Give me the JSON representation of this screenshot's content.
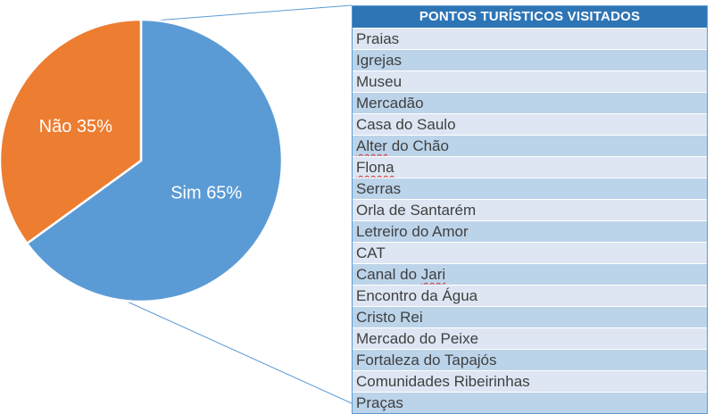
{
  "chart_data": {
    "type": "pie",
    "slices": [
      {
        "label": "Sim 65%",
        "category": "Sim",
        "value": 65,
        "color": "#5b9bd5"
      },
      {
        "label": "Não 35%",
        "category": "Não",
        "value": 35,
        "color": "#ed7d31"
      }
    ],
    "start_angle_deg": 0,
    "slice_border_color": "#ffffff",
    "connector_color": "#5b9bd5"
  },
  "table": {
    "title": "PONTOS TURÍSTICOS VISITADOS",
    "header_color": "#2e75b6",
    "row_colors": [
      "#dde6f2",
      "#bcd4ea"
    ],
    "rows": [
      {
        "text": "Praias"
      },
      {
        "text": "Igrejas"
      },
      {
        "text": "Museu"
      },
      {
        "text": "Mercadão"
      },
      {
        "text": "Casa do Saulo"
      },
      {
        "text": "Alter do Chão",
        "squiggle": "Alter"
      },
      {
        "text": "Flona",
        "squiggle": "Flona"
      },
      {
        "text": "Serras"
      },
      {
        "text": "Orla de Santarém"
      },
      {
        "text": "Letreiro do Amor"
      },
      {
        "text": "CAT"
      },
      {
        "text": "Canal do Jari",
        "squiggle": "Jari"
      },
      {
        "text": "Encontro da Água"
      },
      {
        "text": "Cristo Rei"
      },
      {
        "text": "Mercado do Peixe"
      },
      {
        "text": "Fortaleza do Tapajós"
      },
      {
        "text": "Comunidades Ribeirinhas"
      },
      {
        "text": "Praças"
      }
    ]
  }
}
